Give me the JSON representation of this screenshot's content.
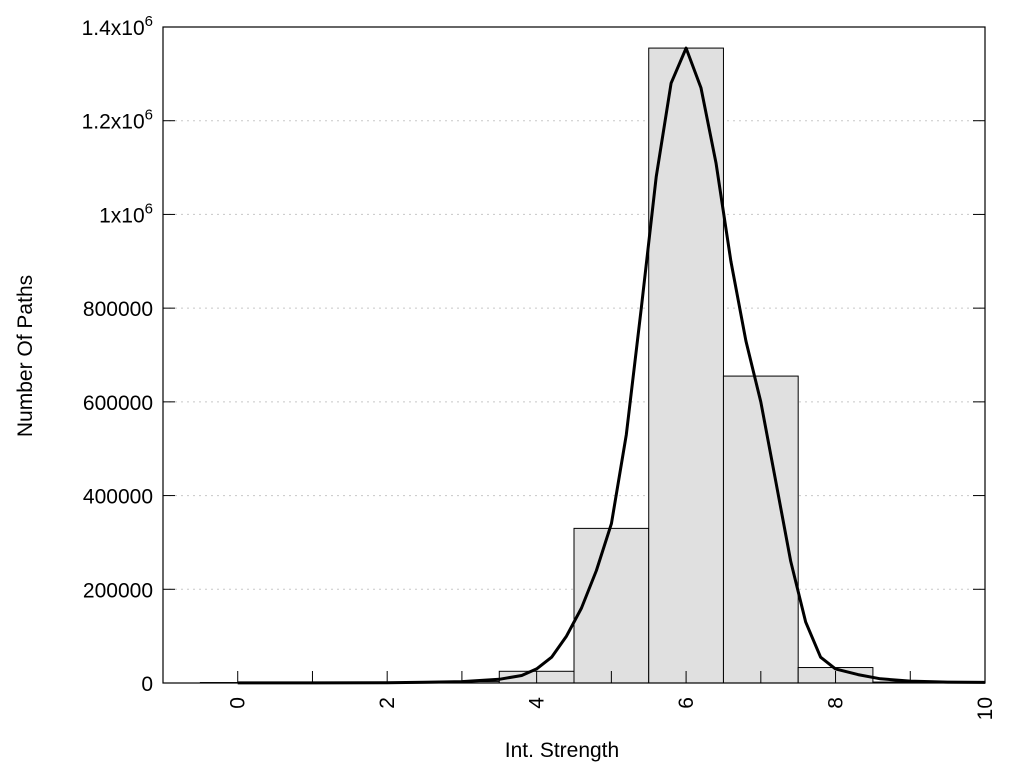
{
  "chart_data": {
    "type": "bar",
    "xlabel": "Int. Strength",
    "ylabel": "Number Of Paths",
    "xlim": [
      -1,
      10
    ],
    "ylim": [
      0,
      1400000
    ],
    "grid": true,
    "x_ticks": [
      {
        "value": 0,
        "label": "0"
      },
      {
        "value": 2,
        "label": "2"
      },
      {
        "value": 4,
        "label": "4"
      },
      {
        "value": 6,
        "label": "6"
      },
      {
        "value": 8,
        "label": "8"
      },
      {
        "value": 10,
        "label": "10"
      }
    ],
    "y_ticks": [
      {
        "value": 0,
        "label": "0"
      },
      {
        "value": 200000,
        "label": "200000"
      },
      {
        "value": 400000,
        "label": "400000"
      },
      {
        "value": 600000,
        "label": "600000"
      },
      {
        "value": 800000,
        "label": "800000"
      },
      {
        "value": 1000000,
        "label": "1x10",
        "sup": "6"
      },
      {
        "value": 1200000,
        "label": "1.2x10",
        "sup": "6"
      },
      {
        "value": 1400000,
        "label": "1.4x10",
        "sup": "6"
      }
    ],
    "bars": [
      {
        "x": 0,
        "value": 1000
      },
      {
        "x": 1,
        "value": 1000
      },
      {
        "x": 2,
        "value": 1500
      },
      {
        "x": 3,
        "value": 3000
      },
      {
        "x": 4,
        "value": 25000
      },
      {
        "x": 5,
        "value": 330000
      },
      {
        "x": 6,
        "value": 1355000
      },
      {
        "x": 7,
        "value": 655000
      },
      {
        "x": 8,
        "value": 33000
      },
      {
        "x": 9,
        "value": 2000
      },
      {
        "x": 10,
        "value": 1000
      }
    ],
    "bar_width": 1,
    "fit_curve": [
      [
        0,
        200
      ],
      [
        1,
        300
      ],
      [
        2,
        700
      ],
      [
        2.5,
        1500
      ],
      [
        3,
        3000
      ],
      [
        3.5,
        8000
      ],
      [
        3.8,
        16000
      ],
      [
        4,
        30000
      ],
      [
        4.2,
        55000
      ],
      [
        4.4,
        100000
      ],
      [
        4.6,
        160000
      ],
      [
        4.8,
        240000
      ],
      [
        5,
        340000
      ],
      [
        5.2,
        530000
      ],
      [
        5.4,
        800000
      ],
      [
        5.6,
        1080000
      ],
      [
        5.8,
        1280000
      ],
      [
        6,
        1355000
      ],
      [
        6.2,
        1270000
      ],
      [
        6.4,
        1110000
      ],
      [
        6.6,
        900000
      ],
      [
        6.8,
        730000
      ],
      [
        7,
        600000
      ],
      [
        7.2,
        430000
      ],
      [
        7.4,
        260000
      ],
      [
        7.6,
        130000
      ],
      [
        7.8,
        55000
      ],
      [
        8,
        30000
      ],
      [
        8.3,
        18000
      ],
      [
        8.6,
        9000
      ],
      [
        9,
        4000
      ],
      [
        9.5,
        2000
      ],
      [
        10,
        1200
      ]
    ]
  }
}
